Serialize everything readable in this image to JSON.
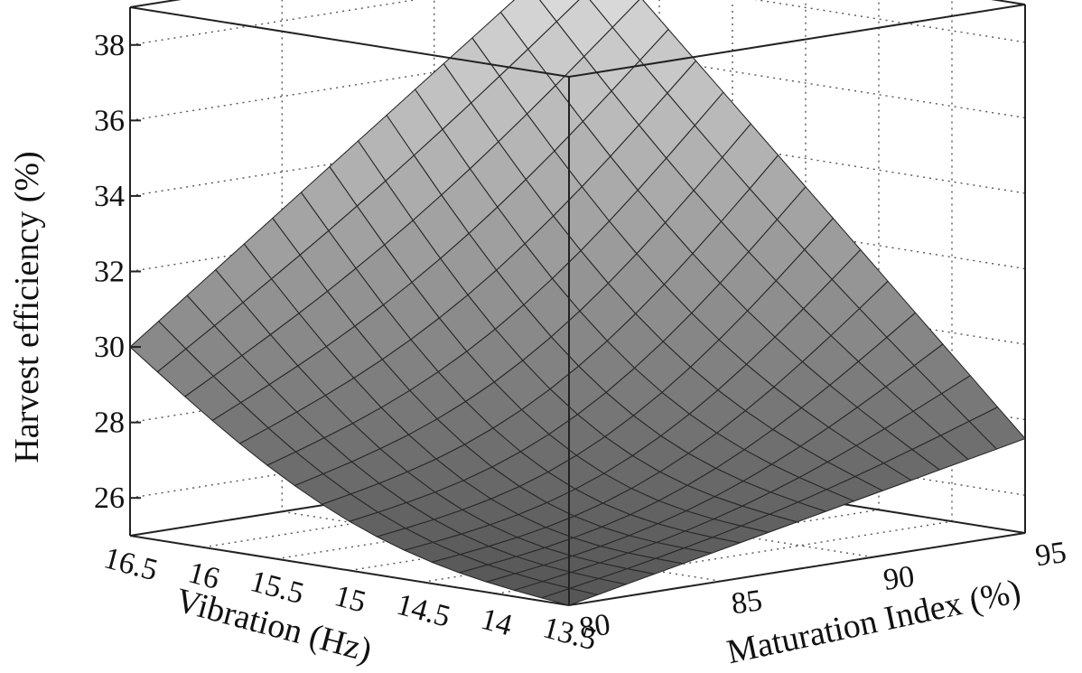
{
  "chart_data": {
    "type": "surface",
    "zlabel": "Harvest efficiency (%)",
    "xlabel": "Vibration (Hz)",
    "ylabel": "Maturation Index (%)",
    "x_ticks": [
      "16.5",
      "16",
      "15.5",
      "15",
      "14.5",
      "14",
      "13.5"
    ],
    "y_ticks": [
      "80",
      "85",
      "90",
      "95"
    ],
    "z_ticks": [
      "26",
      "28",
      "30",
      "32",
      "34",
      "36",
      "38"
    ],
    "xlim": [
      13.5,
      16.5
    ],
    "ylim": [
      80,
      95
    ],
    "zlim": [
      25,
      39
    ],
    "grid": true,
    "surface_corners": [
      {
        "vibration": 16.5,
        "maturation": 80,
        "efficiency": 30.0
      },
      {
        "vibration": 13.5,
        "maturation": 80,
        "efficiency": 25.0
      },
      {
        "vibration": 13.5,
        "maturation": 95,
        "efficiency": 27.5
      },
      {
        "vibration": 16.5,
        "maturation": 95,
        "efficiency": 39.0
      }
    ],
    "surface_samples": [
      {
        "vibration": 15.0,
        "maturation": 80,
        "efficiency": 27.0
      },
      {
        "vibration": 15.0,
        "maturation": 95,
        "efficiency": 33.5
      },
      {
        "vibration": 16.5,
        "maturation": 87.5,
        "efficiency": 33.0
      },
      {
        "vibration": 13.5,
        "maturation": 87.5,
        "efficiency": 26.5
      },
      {
        "vibration": 15.0,
        "maturation": 87.5,
        "efficiency": 29.0
      }
    ]
  }
}
